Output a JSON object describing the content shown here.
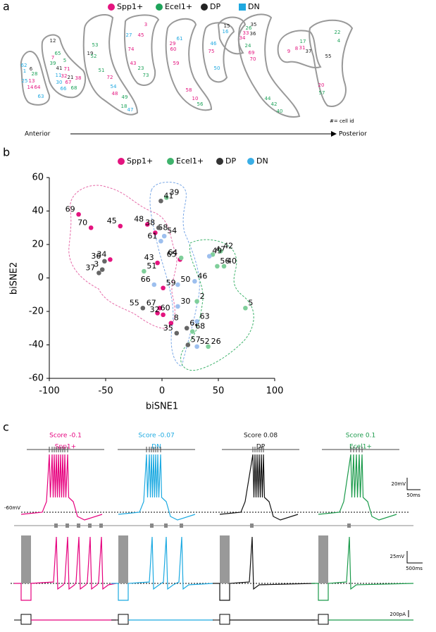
{
  "panel_a": {
    "label": "a",
    "legend": [
      {
        "name": "Spp1+",
        "color": "#e4147f"
      },
      {
        "name": "Ecel1+",
        "color": "#1ea35a"
      },
      {
        "name": "DP",
        "color": "#222222"
      },
      {
        "name": "DN",
        "color": "#1fa8e0"
      }
    ],
    "slices": [
      [
        {
          "id": "62",
          "color": "#1fa8e0"
        },
        {
          "id": "6",
          "color": "#222222"
        },
        {
          "id": "1",
          "color": "#1fa8e0"
        },
        {
          "id": "28",
          "color": "#1ea35a"
        },
        {
          "id": "25",
          "color": "#1fa8e0"
        },
        {
          "id": "13",
          "color": "#e4147f"
        },
        {
          "id": "14",
          "color": "#e4147f"
        },
        {
          "id": "64",
          "color": "#e4147f"
        },
        {
          "id": "63",
          "color": "#1fa8e0"
        }
      ],
      [
        {
          "id": "12",
          "color": "#222222"
        },
        {
          "id": "65",
          "color": "#1ea35a"
        },
        {
          "id": "7",
          "color": "#e4147f"
        },
        {
          "id": "39",
          "color": "#1ea35a"
        },
        {
          "id": "5",
          "color": "#1ea35a"
        },
        {
          "id": "41",
          "color": "#222222"
        },
        {
          "id": "71",
          "color": "#e4147f"
        },
        {
          "id": "32",
          "color": "#e4147f"
        },
        {
          "id": "21",
          "color": "#222222"
        },
        {
          "id": "38",
          "color": "#e4147f"
        },
        {
          "id": "11",
          "color": "#1fa8e0"
        },
        {
          "id": "67",
          "color": "#e4147f"
        },
        {
          "id": "30",
          "color": "#1fa8e0"
        },
        {
          "id": "66",
          "color": "#1fa8e0"
        },
        {
          "id": "68",
          "color": "#1ea35a"
        }
      ],
      [
        {
          "id": "53",
          "color": "#1ea35a"
        },
        {
          "id": "19",
          "color": "#222222"
        },
        {
          "id": "52",
          "color": "#1ea35a"
        },
        {
          "id": "51",
          "color": "#1ea35a"
        },
        {
          "id": "72",
          "color": "#e4147f"
        },
        {
          "id": "54",
          "color": "#1fa8e0"
        },
        {
          "id": "48",
          "color": "#e4147f"
        },
        {
          "id": "49",
          "color": "#1ea35a"
        },
        {
          "id": "18",
          "color": "#1ea35a"
        },
        {
          "id": "47",
          "color": "#1fa8e0"
        }
      ],
      [
        {
          "id": "3",
          "color": "#e4147f"
        },
        {
          "id": "27",
          "color": "#1fa8e0"
        },
        {
          "id": "45",
          "color": "#e4147f"
        },
        {
          "id": "74",
          "color": "#e4147f"
        },
        {
          "id": "43",
          "color": "#e4147f"
        },
        {
          "id": "23",
          "color": "#1ea35a"
        },
        {
          "id": "73",
          "color": "#1ea35a"
        }
      ],
      [
        {
          "id": "61",
          "color": "#1fa8e0"
        },
        {
          "id": "29",
          "color": "#e4147f"
        },
        {
          "id": "60",
          "color": "#e4147f"
        },
        {
          "id": "59",
          "color": "#e4147f"
        },
        {
          "id": "58",
          "color": "#e4147f"
        },
        {
          "id": "10",
          "color": "#e4147f"
        },
        {
          "id": "56",
          "color": "#1ea35a"
        }
      ],
      [
        {
          "id": "46",
          "color": "#1fa8e0"
        },
        {
          "id": "75",
          "color": "#e4147f"
        },
        {
          "id": "50",
          "color": "#1fa8e0"
        }
      ],
      [
        {
          "id": "15",
          "color": "#222222"
        },
        {
          "id": "16",
          "color": "#1fa8e0"
        }
      ],
      [
        {
          "id": "35",
          "color": "#222222"
        },
        {
          "id": "26",
          "color": "#1ea35a"
        },
        {
          "id": "33",
          "color": "#e4147f"
        },
        {
          "id": "36",
          "color": "#222222"
        },
        {
          "id": "34",
          "color": "#e4147f"
        },
        {
          "id": "24",
          "color": "#1ea35a"
        },
        {
          "id": "69",
          "color": "#e4147f"
        },
        {
          "id": "70",
          "color": "#e4147f"
        },
        {
          "id": "44",
          "color": "#1ea35a"
        },
        {
          "id": "42",
          "color": "#1ea35a"
        },
        {
          "id": "40",
          "color": "#1ea35a"
        }
      ],
      [
        {
          "id": "9",
          "color": "#e4147f"
        },
        {
          "id": "8",
          "color": "#e4147f"
        },
        {
          "id": "31",
          "color": "#e4147f"
        },
        {
          "id": "37",
          "color": "#222222"
        },
        {
          "id": "17",
          "color": "#1ea35a"
        }
      ],
      [
        {
          "id": "22",
          "color": "#1ea35a"
        },
        {
          "id": "4",
          "color": "#1ea35a"
        },
        {
          "id": "55",
          "color": "#222222"
        },
        {
          "id": "20",
          "color": "#e4147f"
        },
        {
          "id": "57",
          "color": "#1ea35a"
        }
      ]
    ],
    "start": "Anterior",
    "end": "Posterior",
    "note": "#= cell id"
  },
  "chart_data": {
    "type": "scatter",
    "panel_label": "b",
    "xlabel": "biSNE1",
    "ylabel": "biSNE2",
    "xlim": [
      -100,
      100
    ],
    "ylim": [
      -60,
      60
    ],
    "xticks": [
      -100,
      -50,
      0,
      50,
      100
    ],
    "yticks": [
      60,
      40,
      20,
      0,
      -20,
      -40,
      -60
    ],
    "legend_colors": [
      "#e4147f",
      "#3fb36c",
      "#333333",
      "#3aaee6"
    ],
    "series": [
      {
        "name": "Spp1+",
        "color": "#e4147f",
        "labels": [
          "69",
          "70",
          "45",
          "48",
          "58",
          "65",
          "34",
          "43",
          "59",
          "67",
          "60",
          "32",
          "8"
        ],
        "x": [
          -74,
          -63,
          -37,
          -13,
          -6,
          16,
          -46,
          -4,
          1,
          -2,
          -4,
          1,
          8
        ],
        "y": [
          38,
          30,
          31,
          32,
          27,
          11,
          11,
          9,
          -6,
          -18,
          -21,
          -22,
          -27
        ]
      },
      {
        "name": "Ecel1+",
        "color": "#7fcf9a",
        "labels": [
          "39",
          "64",
          "47",
          "42",
          "56",
          "40",
          "51",
          "2",
          "5",
          "68",
          "26"
        ],
        "x": [
          4,
          17,
          45,
          52,
          49,
          55,
          -16,
          31,
          74,
          27,
          41
        ],
        "y": [
          48,
          12,
          14,
          16,
          7,
          7,
          4,
          -14,
          -18,
          -32,
          -41
        ]
      },
      {
        "name": "DP",
        "color": "#666666",
        "labels": [
          "41",
          "38",
          "36",
          "37",
          "3",
          "55",
          "62",
          "35",
          "57"
        ],
        "x": [
          -1,
          -3,
          -51,
          -56,
          -53,
          -17,
          22,
          13,
          23
        ],
        "y": [
          46,
          30,
          10,
          3,
          5,
          -18,
          -30,
          -33,
          -40
        ]
      },
      {
        "name": "DN",
        "color": "#9dbfee",
        "labels": [
          "54",
          "61",
          "49",
          "66",
          "50",
          "46",
          "30",
          "63",
          "52"
        ],
        "x": [
          2,
          -1,
          42,
          -7,
          14,
          29,
          14,
          31,
          31
        ],
        "y": [
          25,
          22,
          13,
          -4,
          -4,
          -2,
          -17,
          -26,
          -41
        ]
      }
    ]
  },
  "panel_c": {
    "label": "c",
    "cells": [
      {
        "score": "Score -0.1",
        "name": "Spp1+",
        "color": "#e6007e"
      },
      {
        "score": "Score -0.07",
        "name": "DN",
        "color": "#1ba9e1"
      },
      {
        "score": "Score 0.08",
        "name": "DP",
        "color": "#111111"
      },
      {
        "score": "Score 0.1",
        "name": "Ecel1+",
        "color": "#1a9a4a"
      }
    ],
    "baseline": "-60mV",
    "scales": [
      "20mV",
      "50ms",
      "25mV",
      "500ms",
      "200pA"
    ]
  }
}
